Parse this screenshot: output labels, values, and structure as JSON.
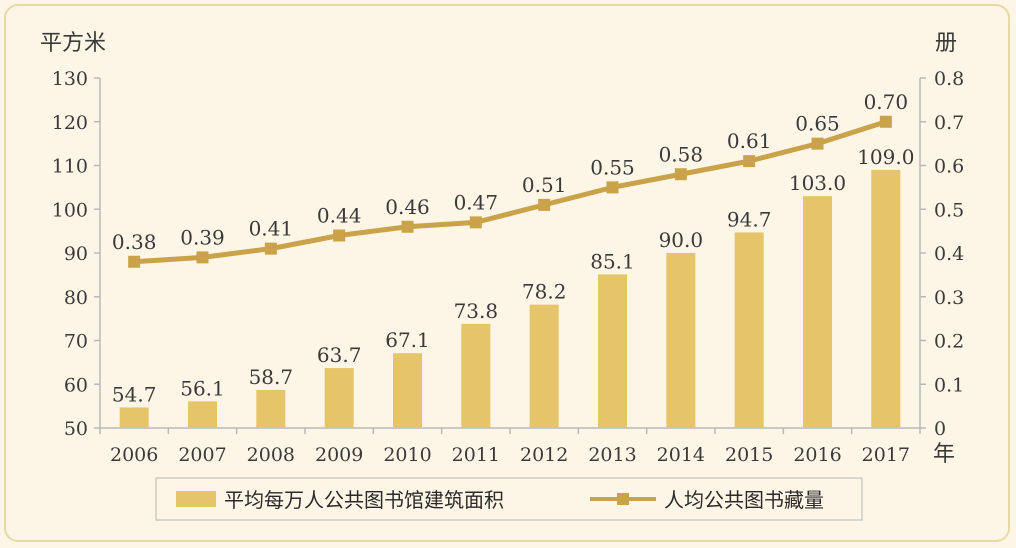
{
  "chart_data": {
    "type": "bar",
    "categories": [
      "2006",
      "2007",
      "2008",
      "2009",
      "2010",
      "2011",
      "2012",
      "2013",
      "2014",
      "2015",
      "2016",
      "2017"
    ],
    "series": [
      {
        "name": "平均每万人公共图书馆建筑面积",
        "type": "bar",
        "axis": "left",
        "values": [
          54.7,
          56.1,
          58.7,
          63.7,
          67.1,
          73.8,
          78.2,
          85.1,
          90.0,
          94.7,
          103.0,
          109.0
        ],
        "labels": [
          "54.7",
          "56.1",
          "58.7",
          "63.7",
          "67.1",
          "73.8",
          "78.2",
          "85.1",
          "90.0",
          "94.7",
          "103.0",
          "109.0"
        ],
        "color": "#e6c46a"
      },
      {
        "name": "人均公共图书藏量",
        "type": "line",
        "axis": "right",
        "values": [
          0.38,
          0.39,
          0.41,
          0.44,
          0.46,
          0.47,
          0.51,
          0.55,
          0.58,
          0.61,
          0.65,
          0.7
        ],
        "labels": [
          "0.38",
          "0.39",
          "0.41",
          "0.44",
          "0.46",
          "0.47",
          "0.51",
          "0.55",
          "0.58",
          "0.61",
          "0.65",
          "0.70"
        ],
        "color": "#c9a24a"
      }
    ],
    "y_left": {
      "unit": "平方米",
      "range": [
        50,
        130
      ],
      "ticks": [
        "50",
        "60",
        "70",
        "80",
        "90",
        "100",
        "110",
        "120",
        "130"
      ]
    },
    "y_right": {
      "unit": "册",
      "range": [
        0,
        0.8
      ],
      "ticks": [
        "0",
        "0.1",
        "0.2",
        "0.3",
        "0.4",
        "0.5",
        "0.6",
        "0.7",
        "0.8"
      ]
    },
    "x_unit": "年",
    "grid": false,
    "legend_position": "bottom"
  }
}
